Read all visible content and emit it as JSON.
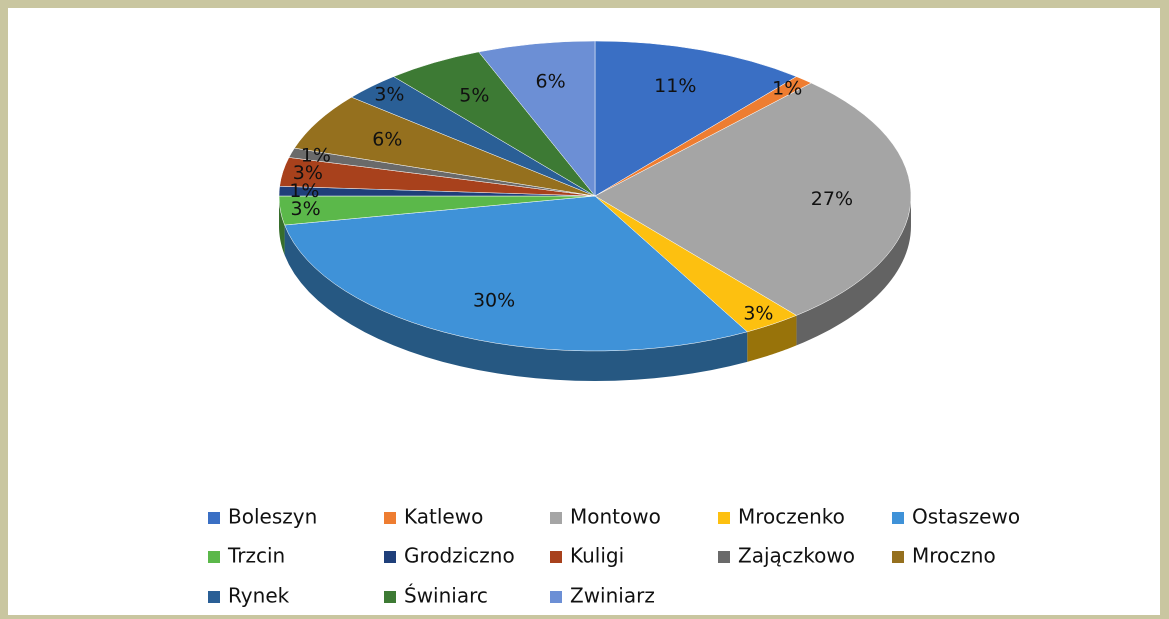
{
  "chart_data": {
    "type": "pie",
    "categories": [
      "Boleszyn",
      "Katlewo",
      "Montowo",
      "Mroczenko",
      "Ostaszewo",
      "Trzcin",
      "Grodziczno",
      "Kuligi",
      "Zajączkowo",
      "Mroczno",
      "Rynek",
      "Świniarc",
      "Zwiniarz"
    ],
    "values": [
      11,
      1,
      27,
      3,
      30,
      3,
      1,
      3,
      1,
      6,
      3,
      5,
      6
    ],
    "value_labels": [
      "11%",
      "1%",
      "27%",
      "3%",
      "30%",
      "3%",
      "1%",
      "3%",
      "1%",
      "6%",
      "3%",
      "5%",
      "6%"
    ],
    "colors": [
      "#3a6fc4",
      "#ee7d31",
      "#a5a5a5",
      "#fdc010",
      "#3f92d8",
      "#5bb84a",
      "#1f3f7a",
      "#a8411c",
      "#6a6a6a",
      "#95701e",
      "#2a5f96",
      "#3d7a34",
      "#6c8fd5"
    ],
    "legend": "bottom"
  }
}
